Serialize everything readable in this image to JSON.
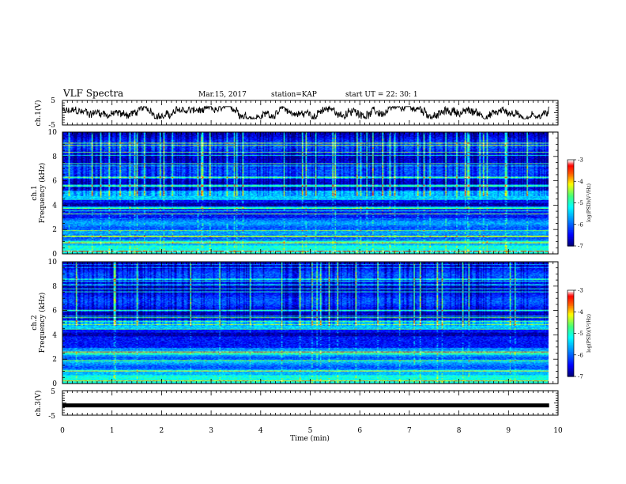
{
  "header": {
    "title": "VLF Spectra",
    "date": "Mar.15, 2017",
    "station": "station=KAP",
    "start": "start  UT  =   22: 30: 1"
  },
  "chart_data": [
    {
      "type": "line",
      "panel": "ch1-waveform",
      "ylabel": "ch.1(V)",
      "xlim": [
        0,
        10
      ],
      "ylim": [
        -5,
        5
      ],
      "yticks": [
        "5",
        "-5"
      ],
      "x_extent": [
        0,
        9.82
      ],
      "description_values": {
        "level_min": -2.5,
        "level_max": 2.5,
        "mean": 0
      }
    },
    {
      "type": "heatmap",
      "panel": "ch1-spectrogram",
      "ylabel": "ch.1\nFrequency (kHz)",
      "ylabel_lines": [
        "ch.1",
        "Frequency (kHz)"
      ],
      "xlim": [
        0,
        10
      ],
      "ylim": [
        0,
        10
      ],
      "yticks": [
        "0",
        "2",
        "4",
        "6",
        "8",
        "10"
      ],
      "colorbar": {
        "range": [
          -7,
          -3
        ],
        "ticks": [
          "-3",
          "-4",
          "-5",
          "-6",
          "-7"
        ],
        "label": "log(PSD)(V²/Hz)"
      }
    },
    {
      "type": "heatmap",
      "panel": "ch2-spectrogram",
      "ylabel": "ch.2\nFrequency (kHz)",
      "ylabel_lines": [
        "ch.2",
        "Frequency (kHz)"
      ],
      "xlim": [
        0,
        10
      ],
      "ylim": [
        0,
        10
      ],
      "yticks": [
        "0",
        "2",
        "4",
        "6",
        "8",
        "10"
      ],
      "colorbar": {
        "range": [
          -7,
          -3
        ],
        "ticks": [
          "-3",
          "-4",
          "-5",
          "-6",
          "-7"
        ],
        "label": "log(PSD)(V²/Hz)"
      }
    },
    {
      "type": "line",
      "panel": "ch3-waveform",
      "ylabel": "ch.3(V)",
      "xlim": [
        0,
        10
      ],
      "ylim": [
        -5,
        5
      ],
      "yticks": [
        "5",
        "-5"
      ],
      "series": [
        {
          "x": [
            0,
            9.82
          ],
          "y": [
            -1,
            -1
          ]
        }
      ]
    }
  ],
  "xaxis": {
    "label": "Time  (min)",
    "ticks": [
      "0",
      "1",
      "2",
      "3",
      "4",
      "5",
      "6",
      "7",
      "8",
      "9",
      "10"
    ]
  },
  "colors": {
    "axis": "#000000",
    "background": "#ffffff",
    "colormap": [
      "#00007f",
      "#0000ff",
      "#00a0ff",
      "#00ffff",
      "#40ff80",
      "#ffff00",
      "#ff6000",
      "#ff0000",
      "#ffffff"
    ]
  }
}
